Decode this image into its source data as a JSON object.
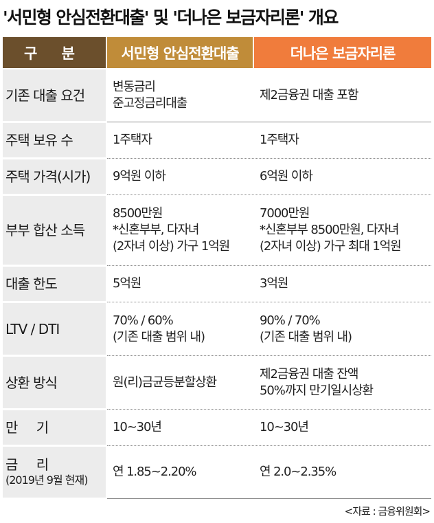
{
  "title": "'서민형 안심전환대출' 및 '더나은 보금자리론' 개요",
  "headers": {
    "category": "구 분",
    "col1": "서민형 안심전환대출",
    "col2": "더나은 보금자리론"
  },
  "rows": [
    {
      "label": "기존 대출 요건",
      "col1": [
        "변동금리",
        "준고정금리대출"
      ],
      "col2": [
        "제2금융권 대출 포함"
      ]
    },
    {
      "label": "주택 보유 수",
      "col1": [
        "1주택자"
      ],
      "col2": [
        "1주택자"
      ]
    },
    {
      "label": "주택 가격(시가)",
      "col1": [
        "9억원 이하"
      ],
      "col2": [
        "6억원 이하"
      ]
    },
    {
      "label": "부부 합산 소득",
      "col1": [
        "8500만원",
        "*신혼부부, 다자녀",
        "(2자녀 이상) 가구 1억원"
      ],
      "col2": [
        "7000만원",
        "*신혼부부 8500만원, 다자녀",
        "(2자녀 이상) 가구 최대 1억원"
      ]
    },
    {
      "label": "대출 한도",
      "col1": [
        "5억원"
      ],
      "col2": [
        "3억원"
      ]
    },
    {
      "label": "LTV / DTI",
      "col1": [
        "70% / 60%",
        "(기존 대출 범위 내)"
      ],
      "col2": [
        "90% / 70%",
        "(기존 대출 범위 내)"
      ]
    },
    {
      "label": "상환 방식",
      "col1": [
        "원(리)금균등분할상환"
      ],
      "col2": [
        "제2금융권 대출 잔액",
        "50%까지 만기일시상환"
      ]
    },
    {
      "label": "만 기",
      "col1": [
        "10~30년"
      ],
      "col2": [
        "10~30년"
      ]
    },
    {
      "label": "금 리",
      "sublabel": "(2019년 9월 현재)",
      "col1": [
        "연 1.85~2.20%"
      ],
      "col2": [
        "연 2.0~2.35%"
      ]
    }
  ],
  "source": "<자료 : 금융위원회>"
}
